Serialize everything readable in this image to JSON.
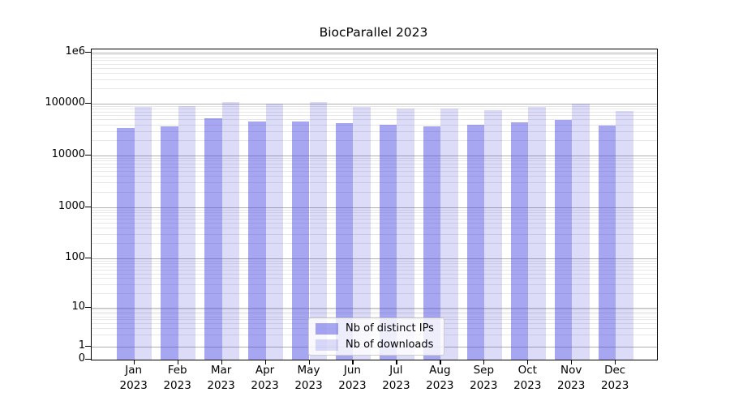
{
  "chart_data": {
    "type": "bar",
    "title": "BiocParallel 2023",
    "yscale": "symlog",
    "grid": true,
    "legend_position": "lower-center-inside",
    "categories": [
      "Jan 2023",
      "Feb 2023",
      "Mar 2023",
      "Apr 2023",
      "May 2023",
      "Jun 2023",
      "Jul 2023",
      "Aug 2023",
      "Sep 2023",
      "Oct 2023",
      "Nov 2023",
      "Dec 2023"
    ],
    "series": [
      {
        "name": "Nb of distinct IPs",
        "fill": "rgba(70,70,225,0.48)",
        "values": [
          34200,
          36800,
          52000,
          46000,
          45500,
          42500,
          39100,
          37200,
          40000,
          43500,
          49000,
          38500
        ]
      },
      {
        "name": "Nb of downloads",
        "fill": "rgba(70,70,225,0.19)",
        "values": [
          88000,
          90000,
          110000,
          102000,
          107500,
          86500,
          81500,
          82500,
          76000,
          86500,
          101500,
          73000
        ]
      }
    ],
    "ytick_labels": [
      "0",
      "1",
      "10",
      "100",
      "1000",
      "10000",
      "100000",
      "1e6"
    ],
    "ytick_values": [
      0,
      1,
      10,
      100,
      1000,
      10000,
      100000,
      1000000
    ],
    "ylim": [
      0,
      1500000
    ],
    "xlabel": "",
    "ylabel": ""
  },
  "colors": {
    "grid_major": "#b0b0b0",
    "grid_minor": "#e7e7e7",
    "spine": "#000000",
    "background": "#ffffff"
  }
}
